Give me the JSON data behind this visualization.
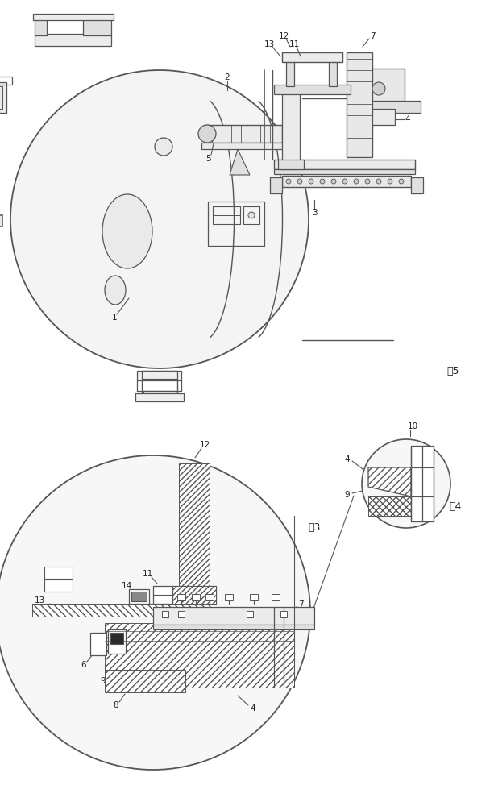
{
  "bg_color": "#ffffff",
  "lc": "#555555",
  "fig5_label": "图5",
  "fig3_label": "图3",
  "fig4_label": "图4",
  "lw_main": 1.0,
  "lw_thin": 0.7
}
